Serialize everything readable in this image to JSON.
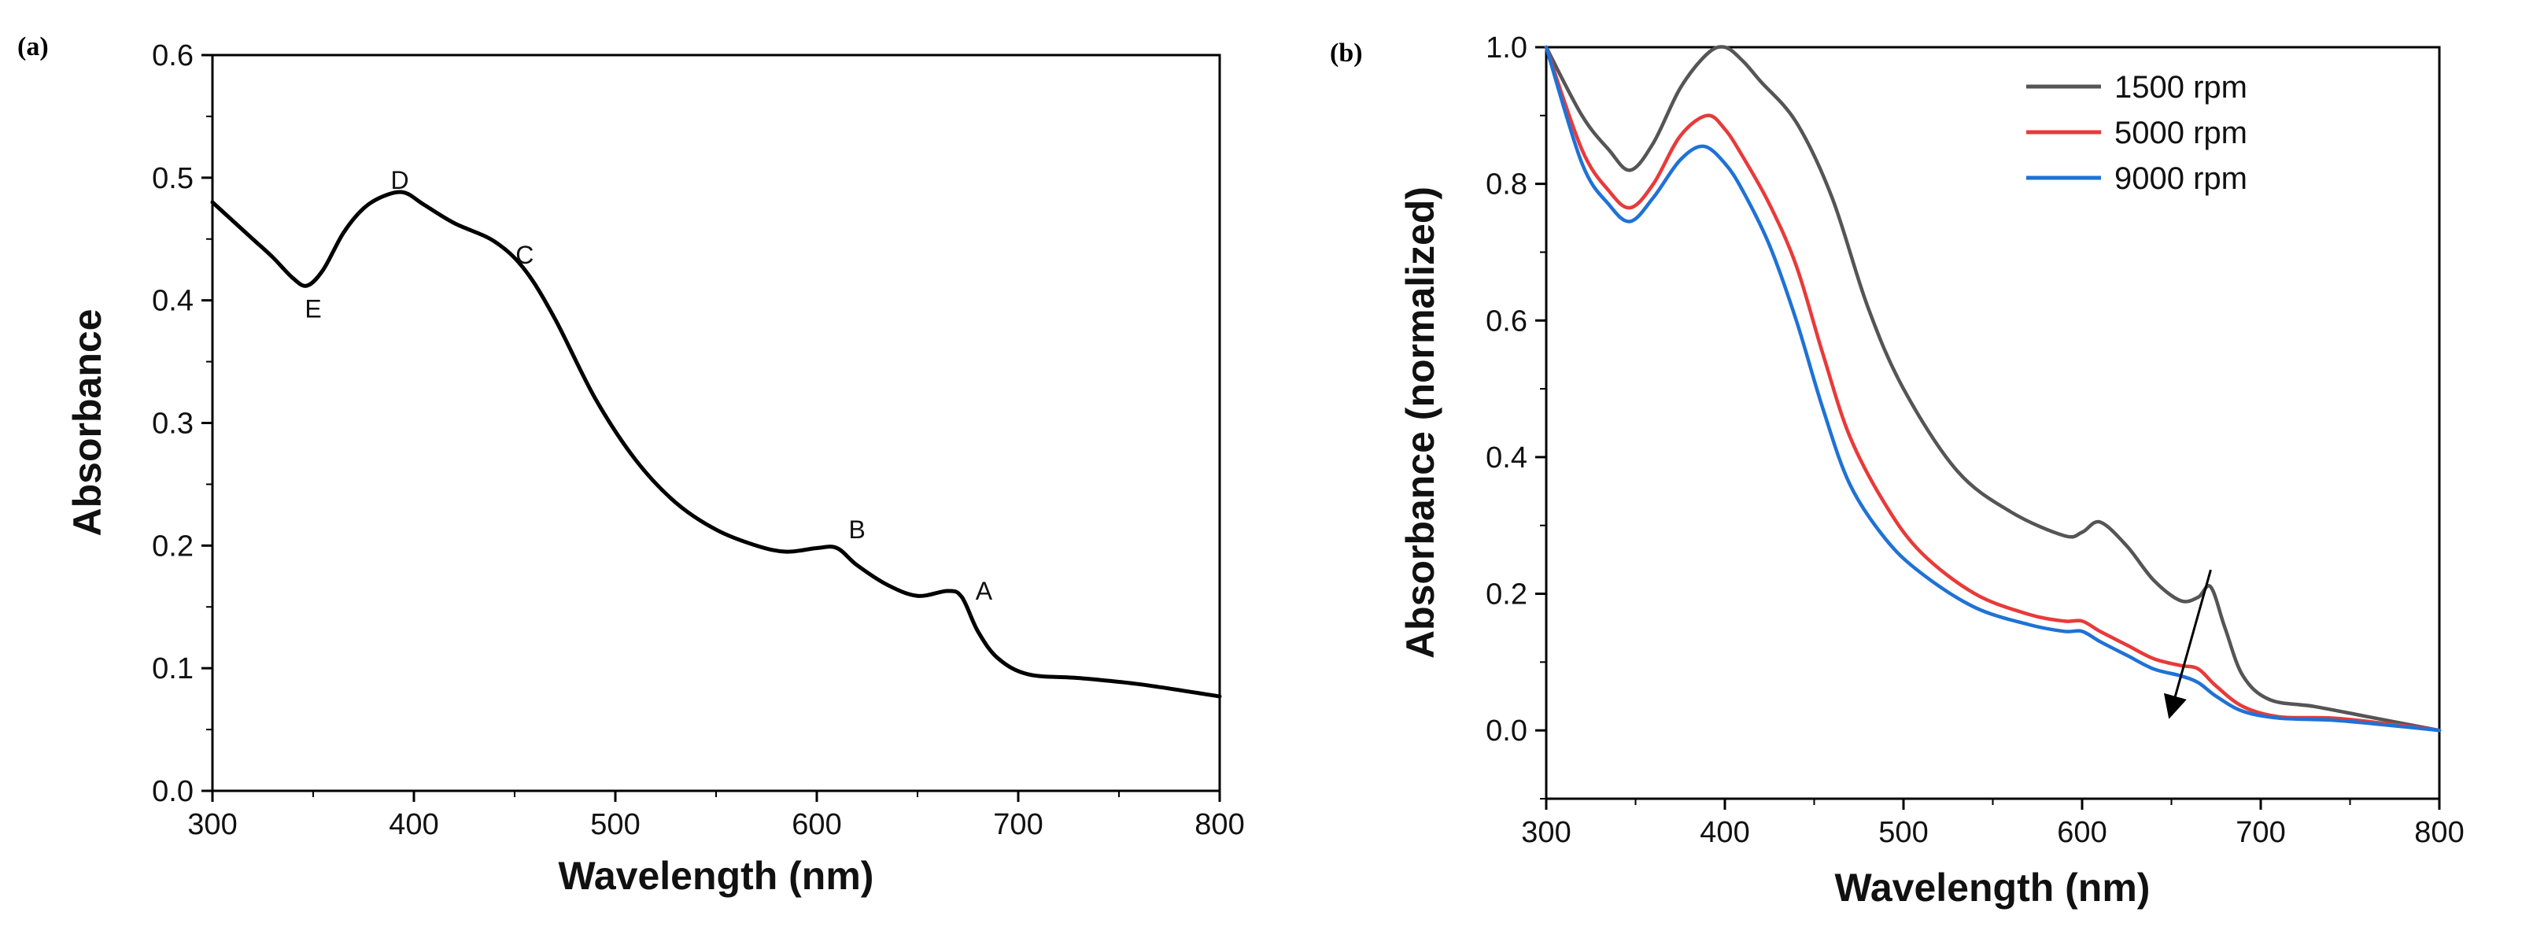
{
  "chart_data": [
    {
      "type": "line",
      "panel_label": "(a)",
      "title": "",
      "xlabel": "Wavelength (nm)",
      "ylabel": "Absorbance",
      "xlim": [
        300,
        800
      ],
      "ylim": [
        0.0,
        0.6
      ],
      "xticks": [
        300,
        400,
        500,
        600,
        700,
        800
      ],
      "xtick_labels": [
        "300",
        "400",
        "500",
        "600",
        "700",
        "800"
      ],
      "yticks": [
        0.0,
        0.1,
        0.2,
        0.3,
        0.4,
        0.5,
        0.6
      ],
      "ytick_labels": [
        "0.0",
        "0.1",
        "0.2",
        "0.3",
        "0.4",
        "0.5",
        "0.6"
      ],
      "grid": false,
      "colors": {
        "line": "#000000",
        "axis": "#000000"
      },
      "series": [
        {
          "name": "absorbance",
          "color": "#000000",
          "x": [
            300,
            310,
            320,
            330,
            340,
            347,
            355,
            365,
            375,
            385,
            395,
            405,
            420,
            440,
            455,
            470,
            490,
            510,
            530,
            550,
            570,
            585,
            600,
            610,
            620,
            635,
            650,
            665,
            672,
            680,
            690,
            705,
            730,
            760,
            800
          ],
          "y": [
            0.48,
            0.465,
            0.45,
            0.435,
            0.418,
            0.412,
            0.425,
            0.455,
            0.475,
            0.485,
            0.488,
            0.478,
            0.463,
            0.448,
            0.425,
            0.385,
            0.32,
            0.27,
            0.235,
            0.213,
            0.2,
            0.195,
            0.198,
            0.198,
            0.184,
            0.168,
            0.159,
            0.163,
            0.158,
            0.13,
            0.108,
            0.095,
            0.092,
            0.087,
            0.077
          ]
        }
      ],
      "annotations": [
        {
          "text": "A",
          "x": 683,
          "y": 0.163
        },
        {
          "text": "B",
          "x": 620,
          "y": 0.213
        },
        {
          "text": "C",
          "x": 455,
          "y": 0.437
        },
        {
          "text": "D",
          "x": 393,
          "y": 0.498
        },
        {
          "text": "E",
          "x": 350,
          "y": 0.393
        }
      ]
    },
    {
      "type": "line",
      "panel_label": "(b)",
      "title": "",
      "xlabel": "Wavelength (nm)",
      "ylabel": "Absorbance (normalized)",
      "xlim": [
        300,
        800
      ],
      "ylim": [
        -0.1,
        1.0
      ],
      "xticks": [
        300,
        400,
        500,
        600,
        700,
        800
      ],
      "xtick_labels": [
        "300",
        "400",
        "500",
        "600",
        "700",
        "800"
      ],
      "yticks": [
        0.0,
        0.2,
        0.4,
        0.6,
        0.8,
        1.0
      ],
      "ytick_labels": [
        "0.0",
        "0.2",
        "0.4",
        "0.6",
        "0.8",
        "1.0"
      ],
      "grid": false,
      "legend_position": "top-right",
      "series": [
        {
          "name": "1500 rpm",
          "color": "#555555",
          "x": [
            300,
            320,
            335,
            347,
            360,
            375,
            390,
            400,
            410,
            420,
            440,
            460,
            480,
            500,
            530,
            560,
            590,
            600,
            610,
            625,
            640,
            655,
            665,
            672,
            680,
            690,
            705,
            730,
            760,
            800
          ],
          "y": [
            1.0,
            0.9,
            0.85,
            0.82,
            0.86,
            0.94,
            0.99,
            1.0,
            0.98,
            0.95,
            0.89,
            0.78,
            0.62,
            0.5,
            0.38,
            0.32,
            0.285,
            0.29,
            0.305,
            0.27,
            0.22,
            0.19,
            0.195,
            0.21,
            0.15,
            0.08,
            0.045,
            0.035,
            0.02,
            0.0
          ]
        },
        {
          "name": "5000 rpm",
          "color": "#e83a3a",
          "x": [
            300,
            320,
            335,
            347,
            360,
            375,
            390,
            400,
            410,
            425,
            440,
            455,
            470,
            490,
            510,
            540,
            570,
            590,
            600,
            610,
            625,
            640,
            655,
            665,
            675,
            690,
            710,
            740,
            770,
            800
          ],
          "y": [
            1.0,
            0.85,
            0.79,
            0.765,
            0.8,
            0.87,
            0.9,
            0.88,
            0.84,
            0.77,
            0.68,
            0.55,
            0.43,
            0.33,
            0.26,
            0.2,
            0.17,
            0.16,
            0.16,
            0.145,
            0.125,
            0.105,
            0.095,
            0.09,
            0.065,
            0.035,
            0.02,
            0.018,
            0.01,
            0.0
          ]
        },
        {
          "name": "9000 rpm",
          "color": "#1f72d6",
          "x": [
            300,
            320,
            335,
            347,
            360,
            375,
            388,
            400,
            410,
            425,
            440,
            455,
            470,
            490,
            510,
            540,
            570,
            590,
            600,
            610,
            625,
            640,
            655,
            665,
            675,
            690,
            710,
            740,
            770,
            800
          ],
          "y": [
            1.0,
            0.83,
            0.77,
            0.745,
            0.78,
            0.835,
            0.855,
            0.83,
            0.79,
            0.71,
            0.6,
            0.47,
            0.36,
            0.28,
            0.23,
            0.18,
            0.155,
            0.145,
            0.145,
            0.13,
            0.11,
            0.09,
            0.08,
            0.07,
            0.05,
            0.028,
            0.018,
            0.015,
            0.008,
            0.0
          ]
        }
      ],
      "arrow": {
        "from": [
          672,
          0.235
        ],
        "to": [
          650,
          0.03
        ]
      }
    }
  ]
}
